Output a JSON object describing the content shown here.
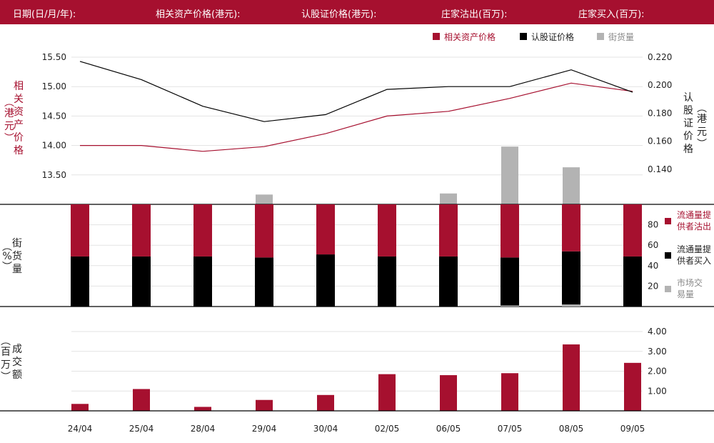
{
  "header": {
    "date": "日期(日/月/年):",
    "underlying": "相关资产价格(港元):",
    "warrant": "认股证价格(港元):",
    "issuer_sell": "庄家沽出(百万):",
    "issuer_buy": "庄家买入(百万):"
  },
  "legend": {
    "underlying": "相关资产价格",
    "warrant": "认股证价格",
    "street": "街货量",
    "lp_sell": "流通量提供者沽出",
    "lp_buy": "流通量提供者买入",
    "market": "市场交易量"
  },
  "axes": {
    "top_left_title": "相关资产价格",
    "top_left_unit": "港元",
    "top_right_title": "认股证价格",
    "top_right_unit": "港元",
    "mid_left_title": "街货量",
    "mid_left_unit": "%",
    "bottom_left_title": "成交额",
    "bottom_left_unit": "百万"
  },
  "colors": {
    "red": "#a6102f",
    "black": "#000000",
    "gray": "#b3b3b3"
  },
  "chart_data": [
    {
      "type": "line",
      "categories": [
        "24/04",
        "25/04",
        "28/04",
        "29/04",
        "30/04",
        "02/05",
        "06/05",
        "07/05",
        "08/05",
        "09/05"
      ],
      "series": [
        {
          "name": "相关资产价格",
          "axis": "left",
          "values": [
            14.0,
            14.0,
            13.9,
            13.98,
            14.2,
            14.5,
            14.58,
            14.8,
            15.06,
            14.92
          ]
        },
        {
          "name": "认股证价格",
          "axis": "right",
          "values": [
            0.217,
            0.204,
            0.185,
            0.174,
            0.179,
            0.197,
            0.199,
            0.199,
            0.211,
            0.195
          ]
        }
      ],
      "left_ylim": [
        13.0,
        15.5
      ],
      "left_ticks": [
        "13.50",
        "14.00",
        "14.50",
        "15.00",
        "15.50"
      ],
      "right_ylim": [
        0.115,
        0.22
      ],
      "right_ticks": [
        "0.140",
        "0.160",
        "0.180",
        "0.200",
        "0.220"
      ]
    },
    {
      "type": "bar",
      "categories": [
        "24/04",
        "25/04",
        "28/04",
        "29/04",
        "30/04",
        "02/05",
        "06/05",
        "07/05",
        "08/05",
        "09/05"
      ],
      "series": [
        {
          "name": "街货量",
          "values": [
            0,
            0,
            0,
            0.45,
            0,
            0,
            0.5,
            2.65,
            1.7,
            0
          ]
        }
      ]
    },
    {
      "type": "bar",
      "categories": [
        "24/04",
        "25/04",
        "28/04",
        "29/04",
        "30/04",
        "02/05",
        "06/05",
        "07/05",
        "08/05",
        "09/05"
      ],
      "stacked": true,
      "series": [
        {
          "name": "流通量提供者买入",
          "values": [
            49,
            49,
            49,
            48,
            51,
            49,
            49,
            47,
            52,
            49
          ]
        },
        {
          "name": "流通量提供者沽出",
          "values": [
            51,
            51,
            51,
            52,
            49,
            51,
            51,
            53,
            48,
            51
          ]
        },
        {
          "name": "市场交易量",
          "values": [
            0,
            0,
            0,
            0,
            0,
            0,
            0,
            1,
            2,
            0
          ]
        }
      ],
      "ylim": [
        0,
        100
      ],
      "ticks": [
        "20",
        "40",
        "60",
        "80"
      ]
    },
    {
      "type": "bar",
      "categories": [
        "24/04",
        "25/04",
        "28/04",
        "29/04",
        "30/04",
        "02/05",
        "06/05",
        "07/05",
        "08/05",
        "09/05"
      ],
      "series": [
        {
          "name": "成交额",
          "values": [
            0.35,
            1.1,
            0.2,
            0.55,
            0.8,
            1.85,
            1.8,
            1.9,
            3.35,
            2.42
          ]
        }
      ],
      "ylim": [
        0,
        4.0
      ],
      "ticks": [
        "1.00",
        "2.00",
        "3.00",
        "4.00"
      ]
    }
  ]
}
